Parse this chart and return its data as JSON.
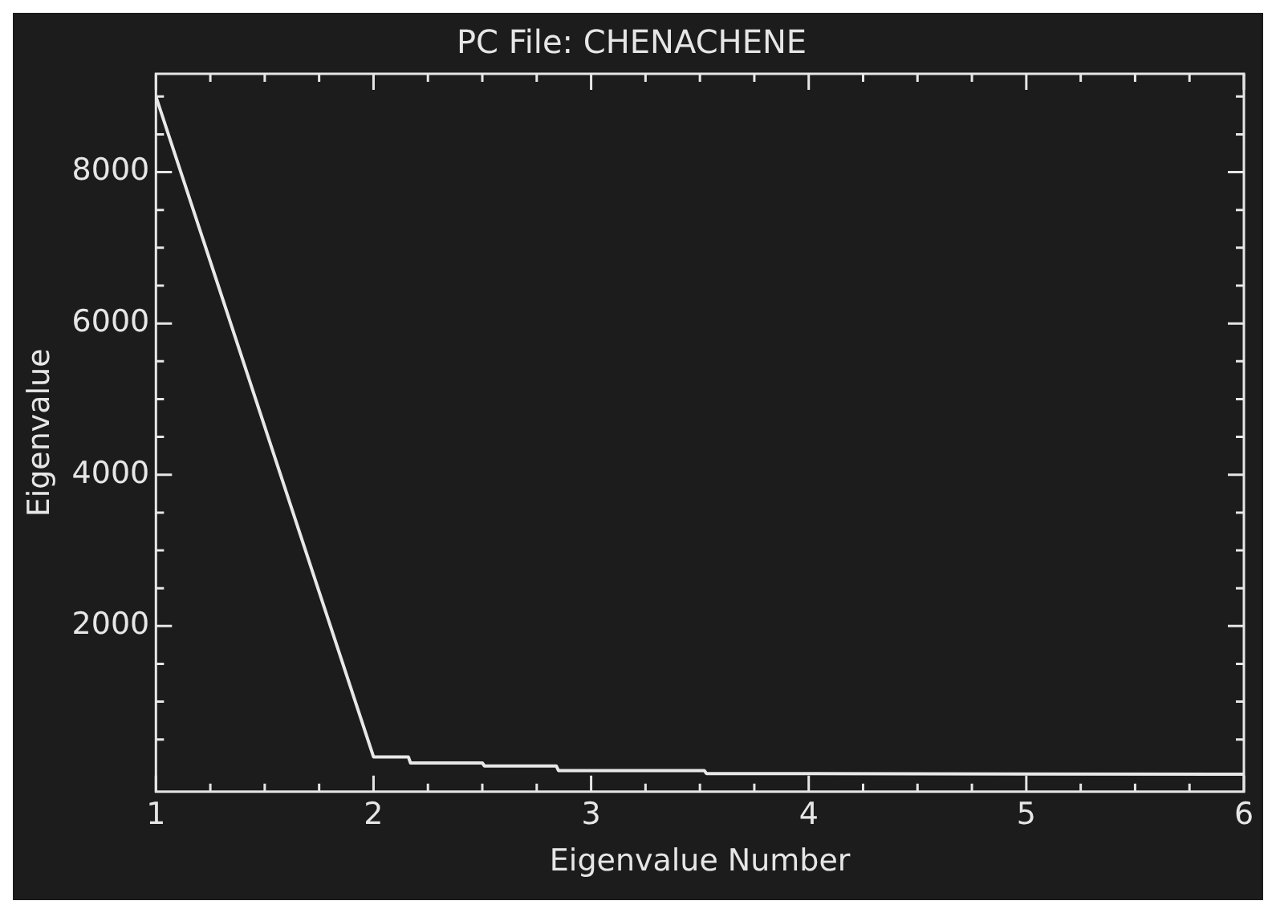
{
  "chart_data": {
    "type": "line",
    "title": "PC File: CHENACHENE",
    "xlabel": "Eigenvalue Number",
    "ylabel": "Eigenvalue",
    "x": [
      1,
      2,
      2.16,
      2.17,
      2.5,
      2.51,
      2.84,
      2.85,
      3.52,
      3.53,
      6
    ],
    "series": [
      {
        "color": "#e8e8e8",
        "values": [
          9000,
          270,
          270,
          190,
          190,
          150,
          150,
          90,
          90,
          50,
          40
        ]
      }
    ],
    "xlim": [
      1,
      6
    ],
    "ylim": [
      -190,
      9300
    ],
    "xticks": [
      1,
      {
        "value": 1.25,
        "label": null
      },
      {
        "value": 1.5,
        "label": null
      },
      {
        "value": 1.75,
        "label": null
      },
      2,
      {
        "value": 2.25,
        "label": null
      },
      {
        "value": 2.5,
        "label": null
      },
      {
        "value": 2.75,
        "label": null
      },
      3,
      {
        "value": 3.25,
        "label": null
      },
      {
        "value": 3.5,
        "label": null
      },
      {
        "value": 3.75,
        "label": null
      },
      4,
      {
        "value": 4.25,
        "label": null
      },
      {
        "value": 4.5,
        "label": null
      },
      {
        "value": 4.75,
        "label": null
      },
      5,
      {
        "value": 5.25,
        "label": null
      },
      {
        "value": 5.5,
        "label": null
      },
      {
        "value": 5.75,
        "label": null
      },
      6
    ],
    "yticks": [
      {
        "value": 500,
        "label": null
      },
      {
        "value": 1000,
        "label": null
      },
      {
        "value": 1500,
        "label": null
      },
      2000,
      {
        "value": 2500,
        "label": null
      },
      {
        "value": 3000,
        "label": null
      },
      {
        "value": 3500,
        "label": null
      },
      4000,
      {
        "value": 4500,
        "label": null
      },
      {
        "value": 5000,
        "label": null
      },
      {
        "value": 5500,
        "label": null
      },
      6000,
      {
        "value": 6500,
        "label": null
      },
      {
        "value": 7000,
        "label": null
      },
      {
        "value": 7500,
        "label": null
      },
      8000,
      {
        "value": 8500,
        "label": null
      },
      {
        "value": 9000,
        "label": null
      }
    ],
    "grid": false,
    "legend": false,
    "marker": "none",
    "line_style": "solid"
  }
}
